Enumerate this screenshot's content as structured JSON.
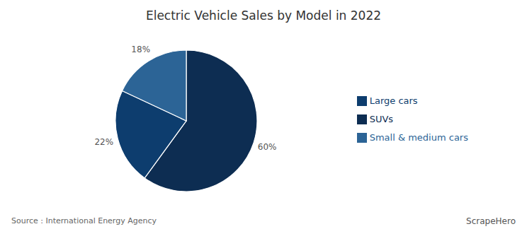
{
  "chart_data": {
    "type": "pie",
    "title": "Electric Vehicle Sales by Model in 2022",
    "categories": [
      "SUVs",
      "Large cars",
      "Small & medium cars"
    ],
    "values": [
      60,
      22,
      18
    ],
    "value_labels": [
      "60%",
      "22%",
      "18%"
    ],
    "colors": [
      "#0d2d52",
      "#0d3d6e",
      "#2c6496"
    ],
    "data_labels": true,
    "legend": "right",
    "annotations": [
      "Source : International Energy Agency",
      "ScrapeHero"
    ]
  }
}
